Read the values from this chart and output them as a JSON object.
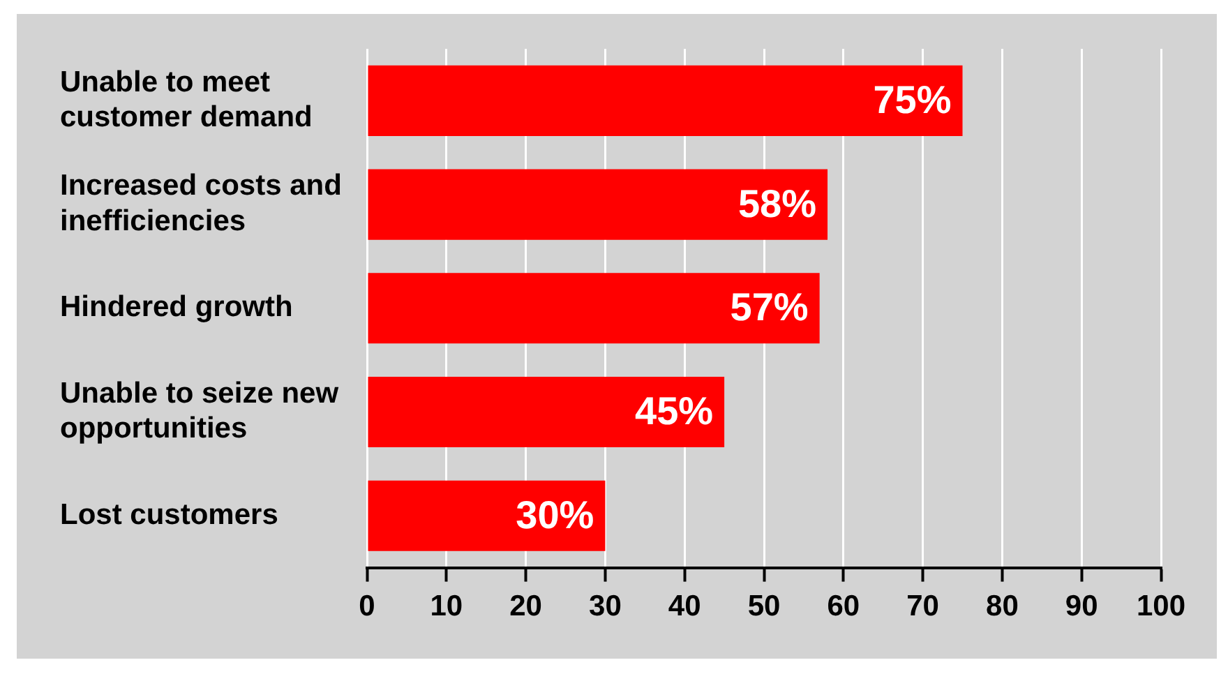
{
  "chart_data": {
    "type": "bar",
    "orientation": "horizontal",
    "categories": [
      "Unable to meet customer demand",
      "Increased costs and inefficiencies",
      "Hindered growth",
      "Unable to seize new opportunities",
      "Lost customers"
    ],
    "values": [
      75,
      58,
      57,
      45,
      30
    ],
    "value_labels": [
      "75%",
      "58%",
      "57%",
      "45%",
      "30%"
    ],
    "color": "#ff0000",
    "xlim": [
      0,
      100
    ],
    "xticks": [
      0,
      10,
      20,
      30,
      40,
      50,
      60,
      70,
      80,
      90,
      100
    ],
    "grid": "x",
    "legend": false
  }
}
